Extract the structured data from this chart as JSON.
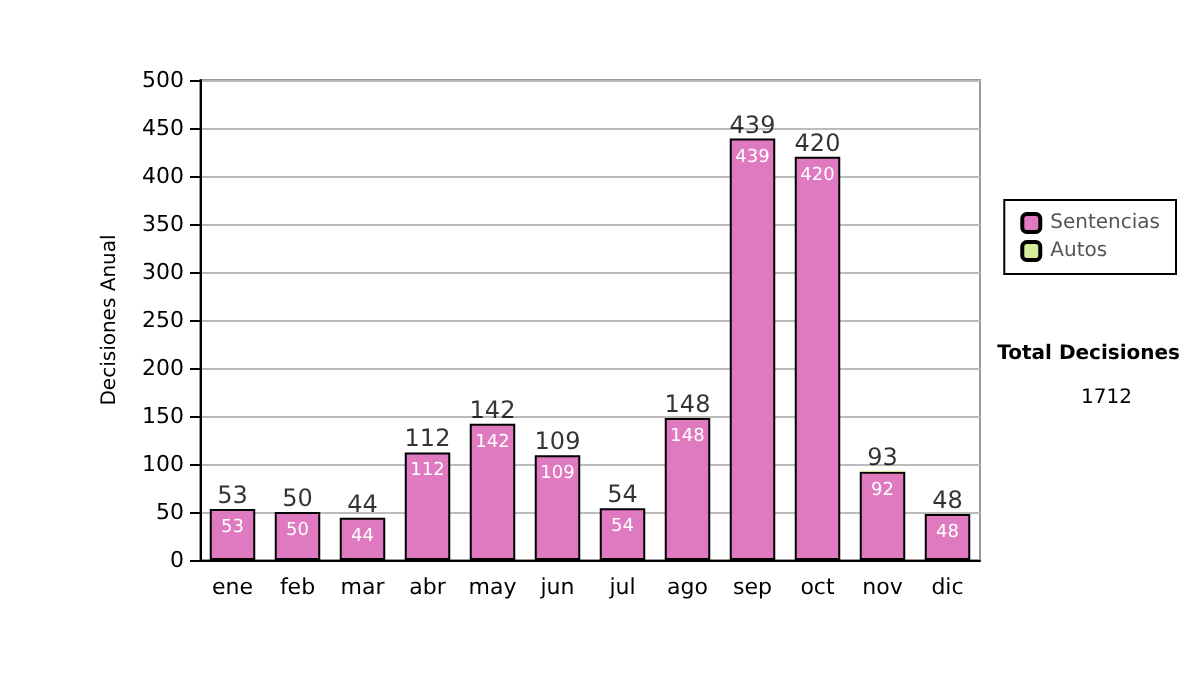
{
  "chart_data": {
    "type": "bar",
    "ylabel": "Decisiones Anual",
    "categories": [
      "ene",
      "feb",
      "mar",
      "abr",
      "may",
      "jun",
      "jul",
      "ago",
      "sep",
      "oct",
      "nov",
      "dic"
    ],
    "stacked": true,
    "series": [
      {
        "name": "Sentencias",
        "color": "#e07ac0",
        "values": [
          53,
          50,
          44,
          112,
          142,
          109,
          54,
          148,
          439,
          420,
          92,
          48
        ],
        "value_labels": [
          "53",
          "50",
          "44",
          "112",
          "142",
          "109",
          "54",
          "148",
          "439",
          "420",
          "92",
          "48"
        ]
      },
      {
        "name": "Autos",
        "color": "#d4ec9c",
        "values": [
          0,
          0,
          0,
          0,
          0,
          0,
          0,
          0,
          0,
          0,
          1,
          0
        ]
      }
    ],
    "totals": [
      "53",
      "50",
      "44",
      "112",
      "142",
      "109",
      "54",
      "148",
      "439",
      "420",
      "93",
      "48"
    ],
    "ylim": [
      0,
      500
    ],
    "yticks": [
      0,
      50,
      100,
      150,
      200,
      250,
      300,
      350,
      400,
      450,
      500
    ],
    "grid": "y",
    "legend": "right",
    "annotations": [
      "Total Decisiones",
      "1712"
    ]
  }
}
